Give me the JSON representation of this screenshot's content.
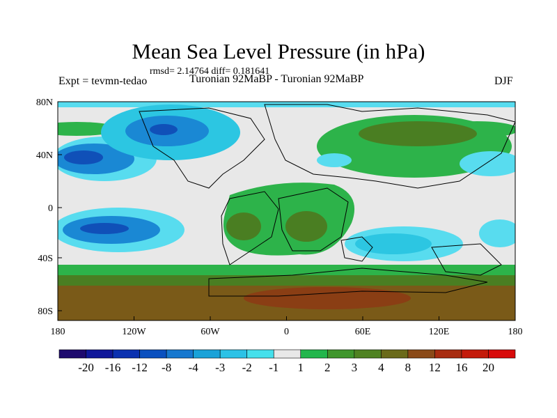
{
  "title": "Mean Sea Level Pressure (in hPa)",
  "stats": "rmsd= 2.14764 diff= 0.181641",
  "experiment": "Expt = tevmn-tedao",
  "subtitle": "Turonian  92MaBP - Turonian  92MaBP",
  "season": "DJF",
  "axes": {
    "lat_ticks": [
      "80N",
      "40N",
      "0",
      "40S",
      "80S"
    ],
    "lon_ticks": [
      "180",
      "120W",
      "60W",
      "0",
      "60E",
      "120E",
      "180"
    ]
  },
  "colorbar": {
    "labels": [
      "-20",
      "-16",
      "-12",
      "-8",
      "-4",
      "-3",
      "-2",
      "-1",
      "1",
      "2",
      "3",
      "4",
      "8",
      "12",
      "16",
      "20"
    ],
    "colors": [
      "#1e0a6e",
      "#10189a",
      "#0b31b0",
      "#0a50bf",
      "#1778cf",
      "#1aa2d8",
      "#2cc2e6",
      "#45e0ec",
      "#e8e8e8",
      "#22b64c",
      "#3f962c",
      "#4f8222",
      "#6a6a1a",
      "#8a4a18",
      "#a82c10",
      "#c41a0a",
      "#d80a0a"
    ]
  },
  "colors": {
    "neutral": "#e8e8e8",
    "green": "#2db34a",
    "olive": "#4a7e22",
    "brown": "#7a5a18",
    "darkbrown": "#8a3e14",
    "cyan": "#2cc6e2",
    "lightcyan": "#58dcef",
    "blue": "#1a88d4",
    "darkblue": "#1050b8"
  }
}
